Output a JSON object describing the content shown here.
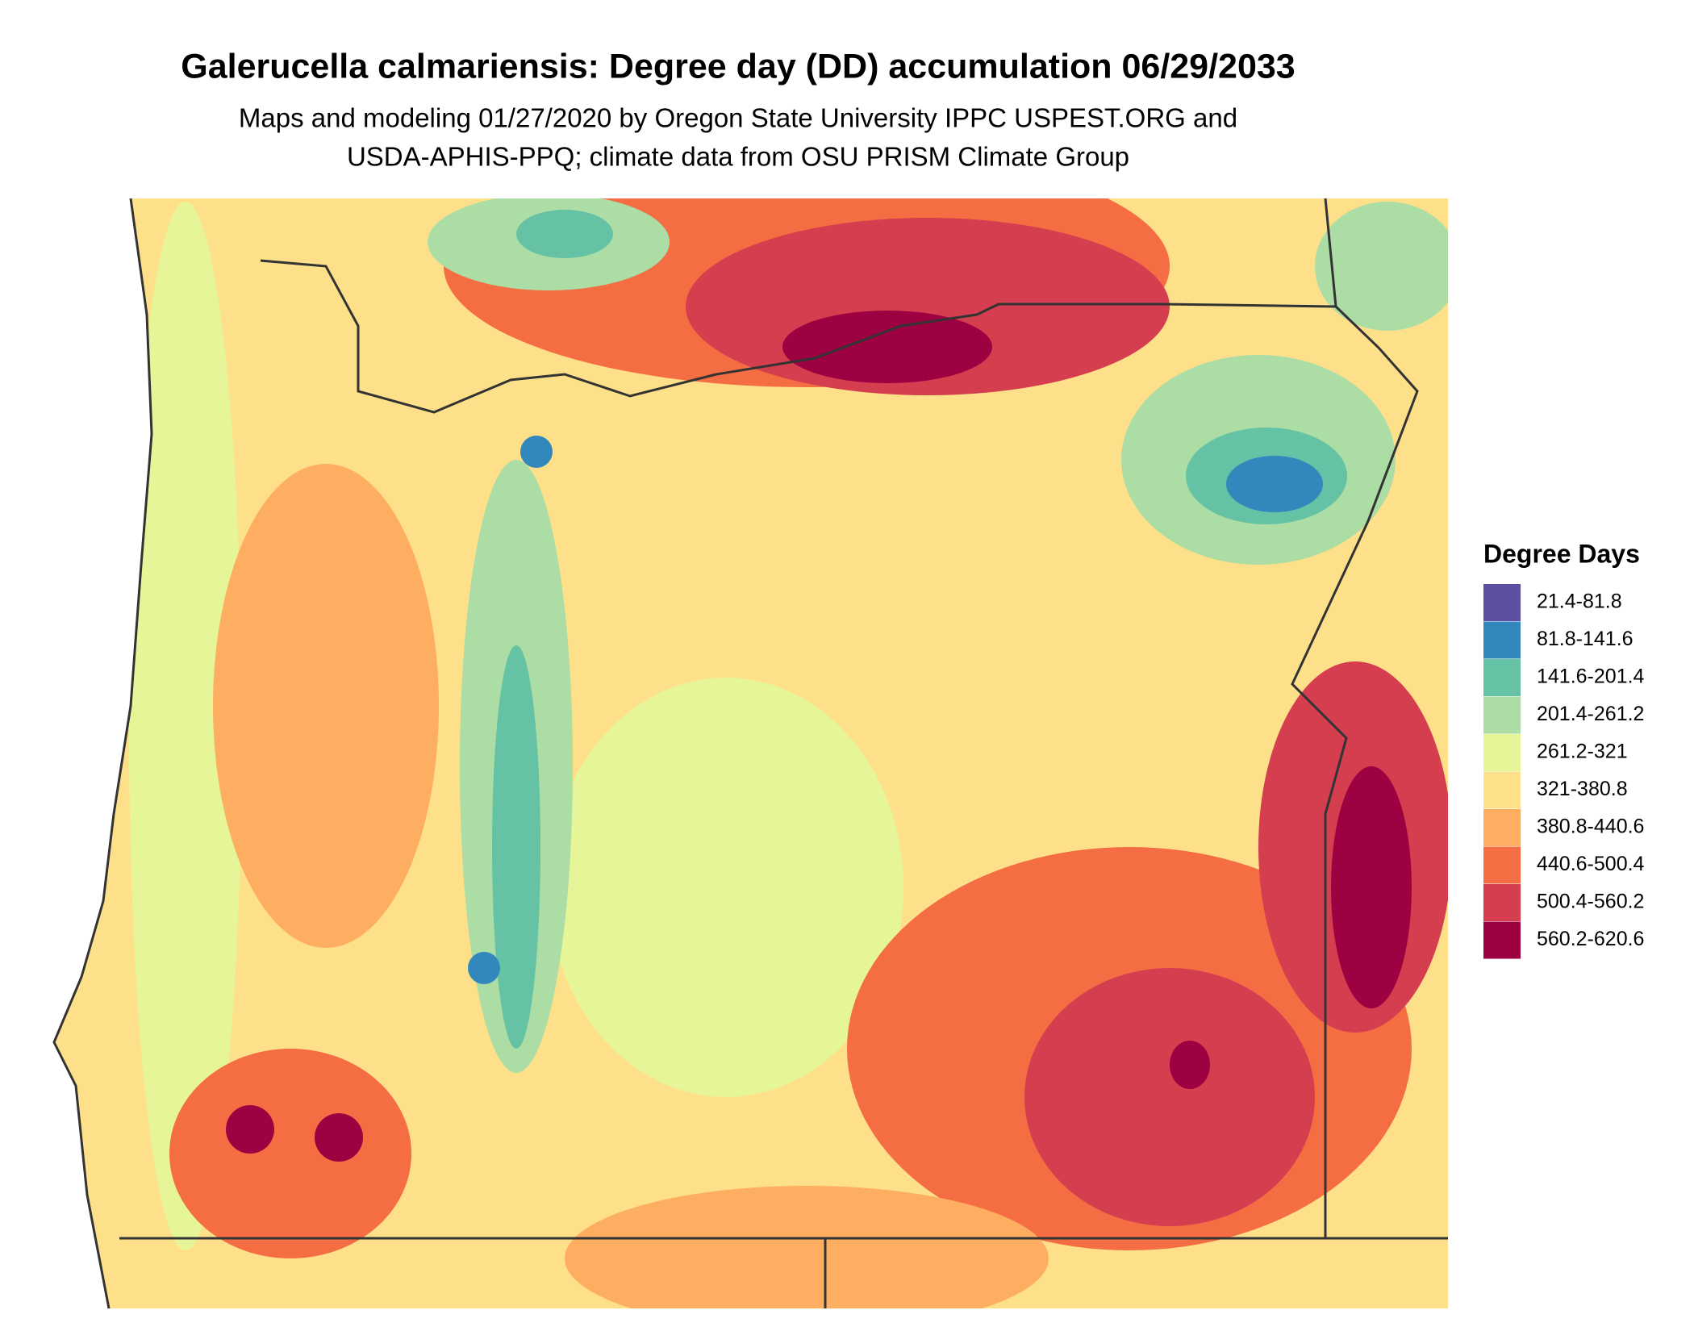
{
  "header": {
    "title": "Galerucella calmariensis: Degree day (DD) accumulation 06/29/2033",
    "subtitle": [
      "Maps and modeling 01/27/2020 by Oregon State University IPPC USPEST.ORG and",
      "USDA-APHIS-PPQ; climate data from OSU PRISM Climate Group"
    ]
  },
  "legend": {
    "title": "Degree Days",
    "items": [
      {
        "label": "21.4-81.8",
        "color": "#5e4fa2"
      },
      {
        "label": "81.8-141.6",
        "color": "#3288bd"
      },
      {
        "label": "141.6-201.4",
        "color": "#66c2a5"
      },
      {
        "label": "201.4-261.2",
        "color": "#abdda4"
      },
      {
        "label": "261.2-321",
        "color": "#e6f598"
      },
      {
        "label": "321-380.8",
        "color": "#fee08b"
      },
      {
        "label": "380.8-440.6",
        "color": "#fdae61"
      },
      {
        "label": "440.6-500.4",
        "color": "#f46d43"
      },
      {
        "label": "500.4-560.2",
        "color": "#d53e4f"
      },
      {
        "label": "560.2-620.6",
        "color": "#9e0142"
      }
    ]
  }
}
